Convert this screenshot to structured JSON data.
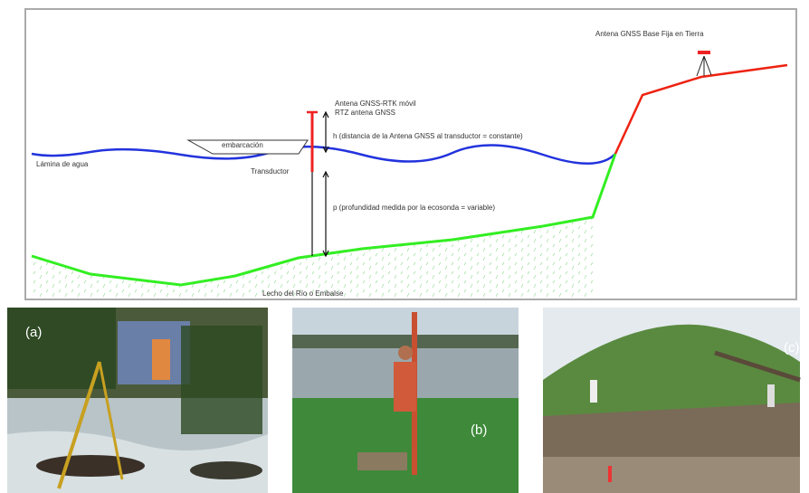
{
  "diagram": {
    "labels": {
      "base_antenna": "Antena GNSS Base Fija en Tierra",
      "rover_antenna": "Antena GNSS-RTK móvil",
      "rover_antenna_2": "RTZ antena GNSS",
      "h": "h (distancia de la Antena GNSS al transductor = constante)",
      "boat": "embarcación",
      "water": "Lámina de agua",
      "transducer": "Transductor",
      "p": "p (profundidad medida por la ecosonda = variable)",
      "bed": "Lecho del Río o Embalse"
    }
  },
  "photos": [
    {
      "label": "(a)"
    },
    {
      "label": "(b)"
    },
    {
      "label": "(c)"
    }
  ]
}
